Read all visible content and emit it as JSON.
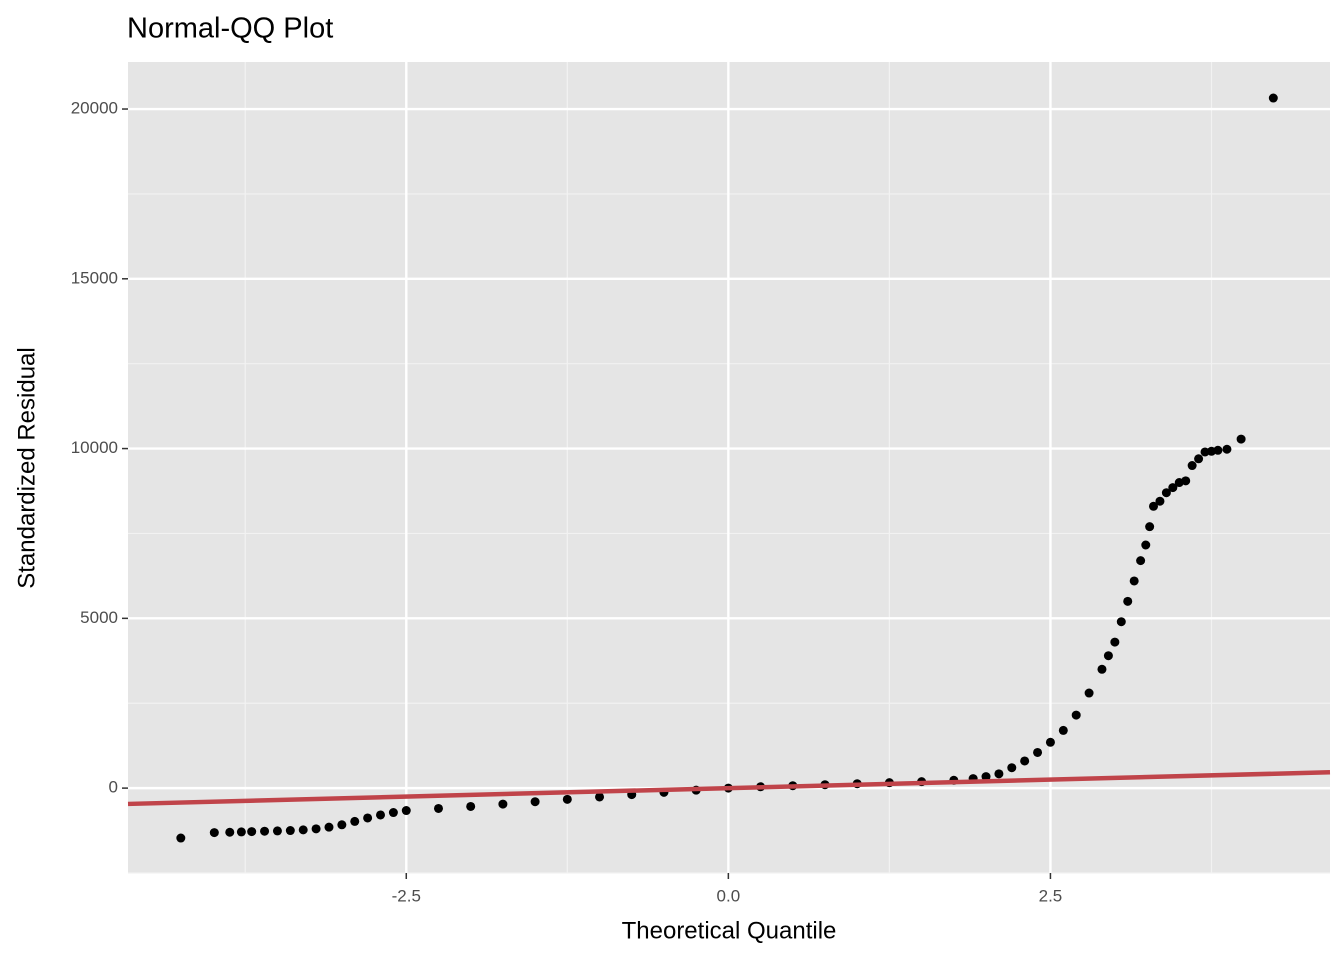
{
  "chart_data": {
    "type": "scatter",
    "title": "Normal-QQ Plot",
    "x_label": "Theoretical Quantile",
    "y_label": "Standardized Residual",
    "xlim": [
      -4.66,
      4.67
    ],
    "ylim": [
      -2500,
      21385
    ],
    "xticks": [
      -2.5,
      {
        "value": 0,
        "label": "0.0"
      },
      2.5
    ],
    "yticks": [
      0,
      5000,
      10000,
      15000,
      20000
    ],
    "x_minor_ticks": [
      -3.75,
      -1.25,
      1.25,
      3.75
    ],
    "y_minor_ticks": [
      -2500,
      2500,
      7500,
      12500,
      17500
    ],
    "grid": true,
    "point_color": "#000000",
    "x": [
      -4.25,
      -3.99,
      -3.87,
      -3.78,
      -3.7,
      -3.6,
      -3.5,
      -3.4,
      -3.3,
      -3.2,
      -3.1,
      -3.0,
      -2.9,
      -2.8,
      -2.7,
      -2.6,
      -2.5,
      -2.25,
      -2.0,
      -1.75,
      -1.5,
      -1.25,
      -1.0,
      -0.75,
      -0.5,
      -0.25,
      0,
      0.25,
      0.5,
      0.75,
      1.0,
      1.25,
      1.5,
      1.75,
      1.9,
      2.0,
      2.1,
      2.2,
      2.3,
      2.4,
      2.5,
      2.6,
      2.7,
      2.8,
      2.9,
      2.95,
      3.0,
      3.05,
      3.1,
      3.15,
      3.2,
      3.24,
      3.27,
      3.3,
      3.35,
      3.4,
      3.45,
      3.5,
      3.55,
      3.6,
      3.65,
      3.7,
      3.75,
      3.8,
      3.87,
      3.98,
      4.23
    ],
    "values": [
      -1470,
      -1310,
      -1300,
      -1290,
      -1280,
      -1270,
      -1260,
      -1250,
      -1230,
      -1200,
      -1150,
      -1080,
      -980,
      -880,
      -790,
      -720,
      -660,
      -600,
      -540,
      -470,
      -400,
      -330,
      -260,
      -190,
      -125,
      -60,
      0,
      40,
      70,
      100,
      130,
      160,
      190,
      230,
      280,
      340,
      420,
      600,
      800,
      1050,
      1350,
      1700,
      2150,
      2800,
      3500,
      3900,
      4300,
      4900,
      5500,
      6100,
      6700,
      7160,
      7700,
      8300,
      8450,
      8700,
      8850,
      9000,
      9050,
      9500,
      9700,
      9900,
      9920,
      9950,
      9980,
      10280,
      20324
    ],
    "reference_line": {
      "intercept": 0,
      "slope": 100,
      "color": "#c0444a"
    }
  }
}
